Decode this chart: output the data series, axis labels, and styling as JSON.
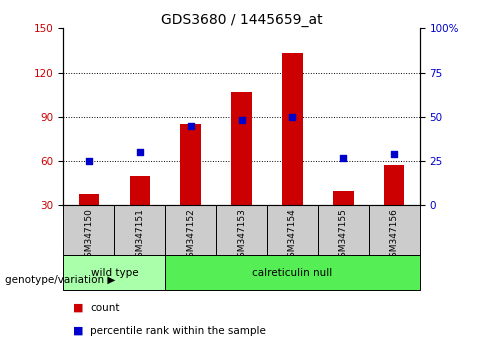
{
  "title": "GDS3680 / 1445659_at",
  "categories": [
    "GSM347150",
    "GSM347151",
    "GSM347152",
    "GSM347153",
    "GSM347154",
    "GSM347155",
    "GSM347156"
  ],
  "bar_values": [
    38,
    50,
    85,
    107,
    133,
    40,
    57
  ],
  "percentile_values": [
    25,
    30,
    45,
    48,
    50,
    27,
    29
  ],
  "ylim_left": [
    30,
    150
  ],
  "ylim_right": [
    0,
    100
  ],
  "yticks_left": [
    30,
    60,
    90,
    120,
    150
  ],
  "yticks_right": [
    0,
    25,
    50,
    75,
    100
  ],
  "bar_color": "#cc0000",
  "marker_color": "#0000cc",
  "bar_bottom": 30,
  "wild_type_indices": [
    0,
    1
  ],
  "calreticulin_null_indices": [
    2,
    3,
    4,
    5,
    6
  ],
  "wild_type_label": "wild type",
  "calreticulin_label": "calreticulin null",
  "genotype_label": "genotype/variation ▶",
  "legend_bar_label": "count",
  "legend_marker_label": "percentile rank within the sample",
  "wt_color": "#aaffaa",
  "cn_color": "#55ee55",
  "sample_box_color": "#cccccc",
  "background_color": "#ffffff",
  "title_fontsize": 10,
  "tick_fontsize": 7.5,
  "cat_fontsize": 6.5,
  "legend_fontsize": 7.5
}
